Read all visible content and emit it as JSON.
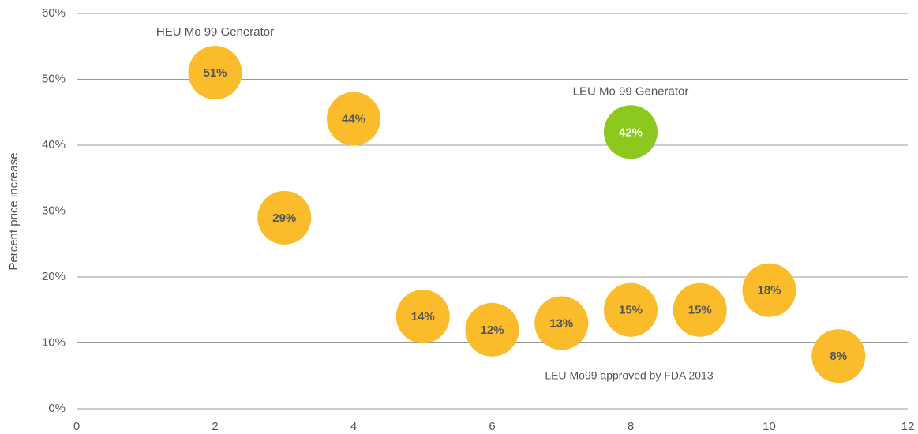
{
  "chart_data": {
    "type": "scatter",
    "y_label": "Percent price increase",
    "xlim": [
      0,
      12
    ],
    "xticks": [
      0,
      2,
      4,
      6,
      8,
      10,
      12
    ],
    "ylim": [
      0,
      60
    ],
    "yticks": [
      {
        "value": 0,
        "label": "0%"
      },
      {
        "value": 10,
        "label": "10%"
      },
      {
        "value": 20,
        "label": "20%"
      },
      {
        "value": 30,
        "label": "30%"
      },
      {
        "value": 40,
        "label": "40%"
      },
      {
        "value": 50,
        "label": "50%"
      },
      {
        "value": 60,
        "label": "60%"
      }
    ],
    "grid": true,
    "series": [
      {
        "name": "HEU Mo 99 Generator",
        "color": "#FBBC2C",
        "label_color": "#555555",
        "x": [
          2,
          3,
          4,
          5,
          6,
          7,
          8,
          9,
          10,
          11
        ],
        "values": [
          51,
          29,
          44,
          14,
          12,
          13,
          15,
          15,
          18,
          8
        ],
        "value_labels": [
          "51%",
          "29%",
          "44%",
          "14%",
          "12%",
          "13%",
          "15%",
          "15%",
          "18%",
          "8%"
        ]
      },
      {
        "name": "LEU Mo 99 Generator",
        "color": "#8DC81E",
        "label_color": "#ffffff",
        "x": [
          8
        ],
        "values": [
          42
        ],
        "value_labels": [
          "42%"
        ]
      }
    ],
    "annotation": "LEU Mo99 approved by FDA  2013"
  }
}
